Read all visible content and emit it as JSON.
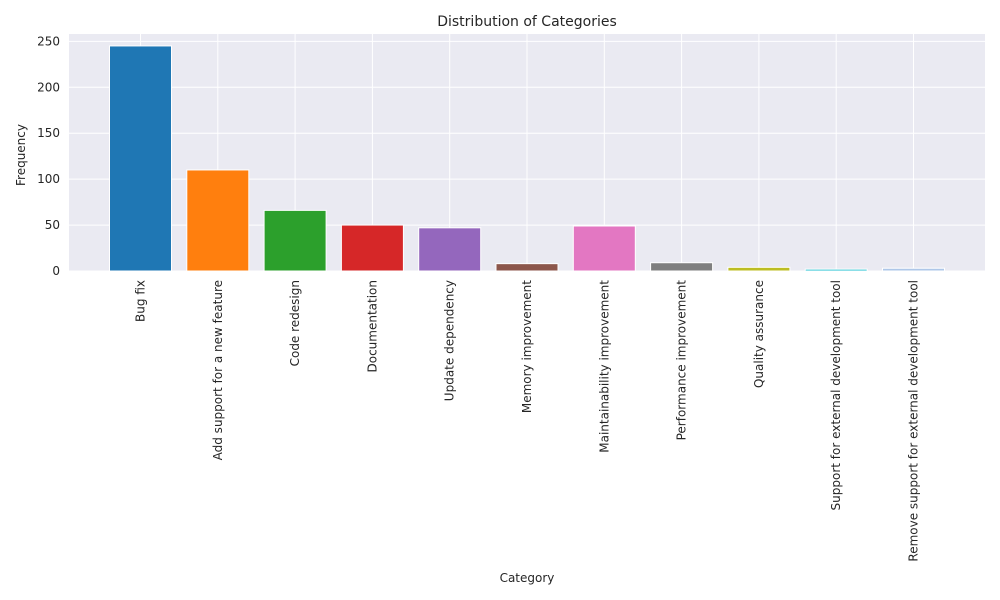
{
  "chart_data": {
    "type": "bar",
    "title": "Distribution of Categories",
    "xlabel": "Category",
    "ylabel": "Frequency",
    "ylim": [
      0,
      258
    ],
    "yticks": [
      0,
      50,
      100,
      150,
      200,
      250
    ],
    "grid": true,
    "categories": [
      "Bug fix",
      "Add support for a new feature",
      "Code redesign",
      "Documentation",
      "Update dependency",
      "Memory improvement",
      "Maintainability improvement",
      "Performance improvement",
      "Quality assurance",
      "Support for external development tool",
      "Remove support for external development tool"
    ],
    "values": [
      245,
      110,
      66,
      50,
      47,
      8,
      49,
      9,
      4,
      2,
      3
    ],
    "colors": [
      "#1f77b4",
      "#ff7f0e",
      "#2ca02c",
      "#d62728",
      "#9467bd",
      "#8c564b",
      "#e377c2",
      "#7f7f7f",
      "#bcbd22",
      "#17becf",
      "#aec7e8"
    ]
  }
}
